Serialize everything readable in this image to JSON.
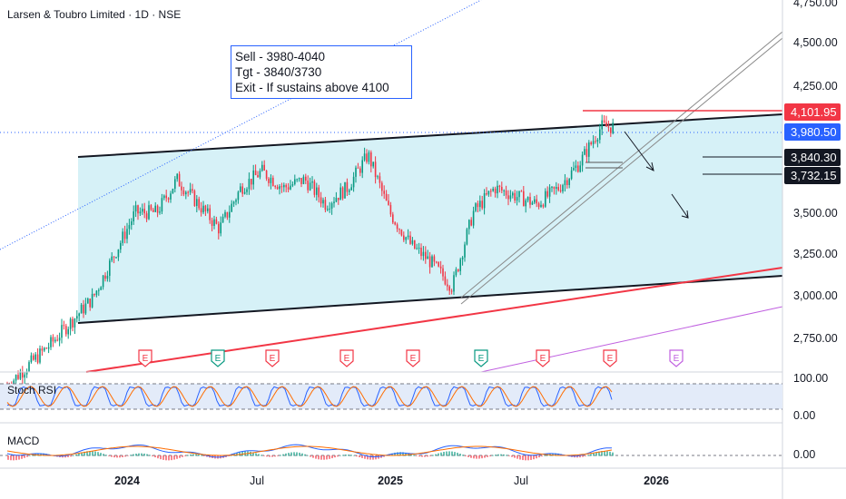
{
  "header": {
    "title": "Larsen & Toubro Limited · 1D · NSE"
  },
  "note": {
    "line1": "Sell - 3980-4040",
    "line2": "Tgt - 3840/3730",
    "line3": "Exit - If sustains above 4100"
  },
  "price_axis": {
    "labels": [
      "4,750.00",
      "4,500.00",
      "4,250.00",
      "3,500.00",
      "3,250.00",
      "3,000.00",
      "2,750.00"
    ]
  },
  "price_tags": [
    {
      "label": "4,101.95",
      "color": "#f23645",
      "text_color": "#ffffff"
    },
    {
      "label": "3,980.50",
      "color": "#2962ff",
      "text_color": "#ffffff"
    },
    {
      "label": "3,840.30",
      "color": "#131722",
      "text_color": "#ffffff"
    },
    {
      "label": "3,732.15",
      "color": "#131722",
      "text_color": "#ffffff"
    }
  ],
  "stoch": {
    "label": "Stoch RSI",
    "axis": [
      "100.00",
      "0.00"
    ]
  },
  "macd": {
    "label": "MACD",
    "axis": [
      "0.00"
    ]
  },
  "time_axis": [
    {
      "label": "2024",
      "bold": true
    },
    {
      "label": "Jul",
      "bold": false
    },
    {
      "label": "2025",
      "bold": true
    },
    {
      "label": "Jul",
      "bold": false
    },
    {
      "label": "2026",
      "bold": true
    }
  ],
  "earnings_markers": [
    "E",
    "E",
    "E",
    "E",
    "E",
    "E",
    "E",
    "E",
    "E"
  ],
  "colors": {
    "channel_fill": "#d6f1f7",
    "up": "#089981",
    "down": "#f23645",
    "trend_red": "#f23645",
    "resistance": "#f23645"
  },
  "chart_data": {
    "type": "candlestick",
    "symbol": "Larsen & Toubro Limited",
    "interval": "1D",
    "exchange": "NSE",
    "close_series": {
      "dates": [
        "2023-07",
        "2023-09",
        "2023-11",
        "2024-01",
        "2024-02",
        "2024-03",
        "2024-04",
        "2024-05",
        "2024-06",
        "2024-07",
        "2024-08",
        "2024-09",
        "2024-10",
        "2024-11",
        "2024-12",
        "2025-01",
        "2025-02",
        "2025-03",
        "2025-04",
        "2025-05",
        "2025-06",
        "2025-07",
        "2025-08",
        "2025-09",
        "2025-10",
        "2025-11"
      ],
      "values": [
        2450,
        2700,
        2980,
        3500,
        3500,
        3700,
        3550,
        3400,
        3650,
        3750,
        3650,
        3700,
        3550,
        3650,
        3850,
        3500,
        3300,
        3200,
        3050,
        3500,
        3650,
        3600,
        3550,
        3650,
        3800,
        4020
      ]
    },
    "levels": {
      "resistance": 4101.95,
      "last_price": 3980.5,
      "target_1": 3840.3,
      "target_2": 3732.15,
      "sell_zone": [
        3980,
        4040
      ],
      "exit_above": 4100
    },
    "ylim": [
      2600,
      4800
    ],
    "annotations": [
      "Sell - 3980-4040",
      "Tgt - 3840/3730",
      "Exit - If sustains above 4100"
    ]
  }
}
